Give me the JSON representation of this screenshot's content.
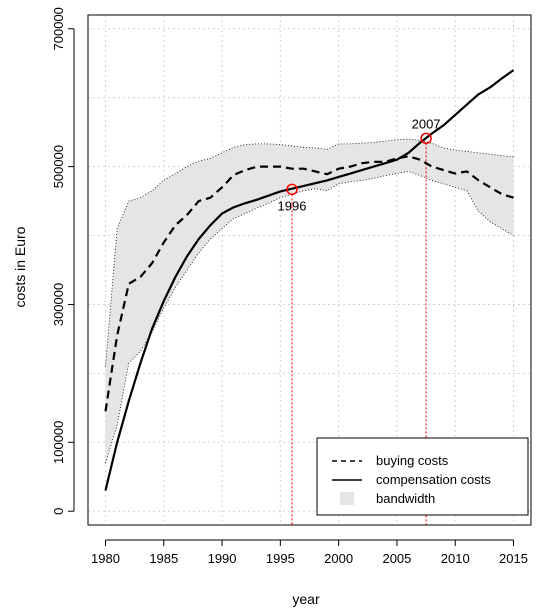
{
  "chart_data": {
    "type": "line",
    "title": "",
    "xlabel": "year",
    "ylabel": "costs in Euro",
    "xlim": [
      1978.5,
      2016.5
    ],
    "ylim": [
      -20000,
      720000
    ],
    "x_ticks": [
      1980,
      1985,
      1990,
      1995,
      2000,
      2005,
      2010,
      2015
    ],
    "y_ticks": [
      0,
      100000,
      300000,
      500000,
      700000
    ],
    "grid": true,
    "legend_position": "bottom-right",
    "series": [
      {
        "name": "buying costs",
        "line_style": "dashed",
        "color": "#000000",
        "x": [
          1980,
          1981,
          1982,
          1983,
          1984,
          1985,
          1986,
          1987,
          1988,
          1989,
          1990,
          1991,
          1992,
          1993,
          1994,
          1995,
          1996,
          1997,
          1998,
          1999,
          2000,
          2001,
          2002,
          2003,
          2004,
          2005,
          2006,
          2007,
          2008,
          2009,
          2010,
          2011,
          2012,
          2013,
          2014,
          2015
        ],
        "values": [
          145000,
          255000,
          330000,
          340000,
          360000,
          390000,
          415000,
          430000,
          450000,
          455000,
          470000,
          488000,
          495000,
          500000,
          500000,
          500000,
          497000,
          497000,
          493000,
          489000,
          497000,
          500000,
          505000,
          507000,
          507000,
          512000,
          515000,
          510000,
          500000,
          495000,
          490000,
          493000,
          480000,
          470000,
          460000,
          455000
        ]
      },
      {
        "name": "compensation costs",
        "line_style": "solid",
        "color": "#000000",
        "x": [
          1980,
          1981,
          1982,
          1983,
          1984,
          1985,
          1986,
          1987,
          1988,
          1989,
          1990,
          1991,
          1992,
          1993,
          1994,
          1995,
          1996,
          1997,
          1998,
          1999,
          2000,
          2001,
          2002,
          2003,
          2004,
          2005,
          2006,
          2007,
          2008,
          2009,
          2010,
          2011,
          2012,
          2013,
          2014,
          2015
        ],
        "values": [
          30000,
          100000,
          160000,
          215000,
          265000,
          305000,
          340000,
          370000,
          395000,
          415000,
          432000,
          441000,
          447000,
          452000,
          458000,
          464000,
          468000,
          472000,
          476000,
          480000,
          485000,
          490000,
          495000,
          500000,
          505000,
          510000,
          520000,
          535000,
          548000,
          560000,
          575000,
          590000,
          605000,
          615000,
          628000,
          640000
        ]
      }
    ],
    "bandwidth": {
      "name": "bandwidth",
      "color": "#e5e5e5",
      "x": [
        1980,
        1981,
        1982,
        1983,
        1984,
        1985,
        1986,
        1987,
        1988,
        1989,
        1990,
        1991,
        1992,
        1993,
        1994,
        1995,
        1996,
        1997,
        1998,
        1999,
        2000,
        2001,
        2002,
        2003,
        2004,
        2005,
        2006,
        2007,
        2008,
        2009,
        2010,
        2011,
        2012,
        2013,
        2014,
        2015
      ],
      "upper": [
        210000,
        410000,
        450000,
        455000,
        465000,
        480000,
        490000,
        500000,
        508000,
        512000,
        520000,
        528000,
        532000,
        533000,
        533000,
        532000,
        530000,
        528000,
        527000,
        525000,
        533000,
        533000,
        534000,
        535000,
        537000,
        539000,
        540000,
        538000,
        534000,
        527000,
        524000,
        522000,
        520000,
        518000,
        516000,
        514000
      ],
      "lower": [
        70000,
        125000,
        215000,
        232000,
        260000,
        295000,
        325000,
        350000,
        375000,
        395000,
        410000,
        425000,
        432000,
        440000,
        447000,
        455000,
        460000,
        465000,
        468000,
        465000,
        475000,
        478000,
        480000,
        483000,
        487000,
        490000,
        493000,
        487000,
        480000,
        475000,
        470000,
        465000,
        435000,
        420000,
        410000,
        400000
      ]
    },
    "vertical_markers": [
      {
        "x": 1996,
        "color": "#ff0000",
        "line_style": "dotted"
      },
      {
        "x": 2007.5,
        "color": "#ff0000",
        "line_style": "dotted"
      }
    ],
    "annotations": [
      {
        "text": "1996",
        "x": 1996,
        "y": 467000,
        "marker": "circle",
        "marker_color": "#ff0000"
      },
      {
        "text": "2007",
        "x": 2007.5,
        "y": 541000,
        "marker": "circle",
        "marker_color": "#ff0000"
      }
    ]
  }
}
